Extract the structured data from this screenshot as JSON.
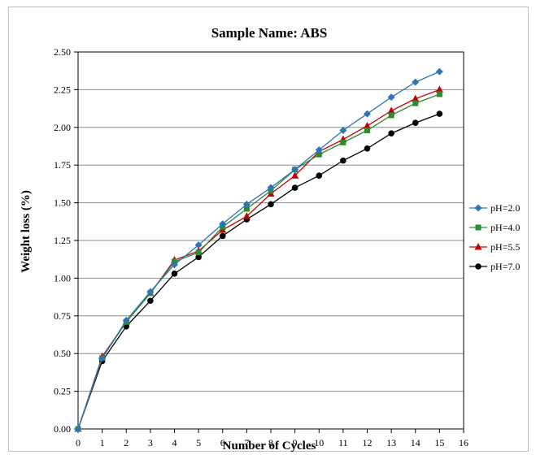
{
  "chart_data": {
    "type": "line",
    "title": "Sample Name: ABS",
    "xlabel": "Number of Cycles",
    "ylabel": "Weight loss  (%)",
    "xlim": [
      0,
      16
    ],
    "ylim": [
      0,
      2.5
    ],
    "x_ticks": [
      "0",
      "1",
      "2",
      "3",
      "4",
      "5",
      "6",
      "7",
      "8",
      "9",
      "10",
      "11",
      "12",
      "13",
      "14",
      "15",
      "16"
    ],
    "y_ticks": [
      "0.00",
      "0.25",
      "0.50",
      "0.75",
      "1.00",
      "1.25",
      "1.50",
      "1.75",
      "2.00",
      "2.25",
      "2.50"
    ],
    "grid": "horizontal",
    "legend_position": "right",
    "x": [
      0,
      1,
      2,
      3,
      4,
      5,
      6,
      7,
      8,
      9,
      10,
      11,
      12,
      13,
      14,
      15
    ],
    "series": [
      {
        "name": "pH=2.0",
        "color": "#2e75b6",
        "marker": "diamond",
        "values": [
          0.0,
          0.47,
          0.72,
          0.91,
          1.09,
          1.22,
          1.36,
          1.49,
          1.6,
          1.72,
          1.85,
          1.98,
          2.09,
          2.2,
          2.3,
          2.37
        ]
      },
      {
        "name": "pH=4.0",
        "color": "#2e8b2e",
        "marker": "square",
        "values": [
          0.0,
          0.47,
          0.71,
          0.9,
          1.11,
          1.17,
          1.34,
          1.46,
          1.58,
          1.72,
          1.82,
          1.9,
          1.98,
          2.08,
          2.16,
          2.22
        ]
      },
      {
        "name": "pH=5.5",
        "color": "#c00000",
        "marker": "triangle",
        "values": [
          0.0,
          0.48,
          0.71,
          0.9,
          1.12,
          1.18,
          1.32,
          1.41,
          1.56,
          1.68,
          1.84,
          1.92,
          2.01,
          2.11,
          2.19,
          2.25
        ]
      },
      {
        "name": "pH=7.0",
        "color": "#000000",
        "marker": "circle",
        "values": [
          0.0,
          0.45,
          0.68,
          0.85,
          1.03,
          1.14,
          1.28,
          1.39,
          1.49,
          1.6,
          1.68,
          1.78,
          1.86,
          1.96,
          2.03,
          2.09
        ]
      }
    ]
  }
}
